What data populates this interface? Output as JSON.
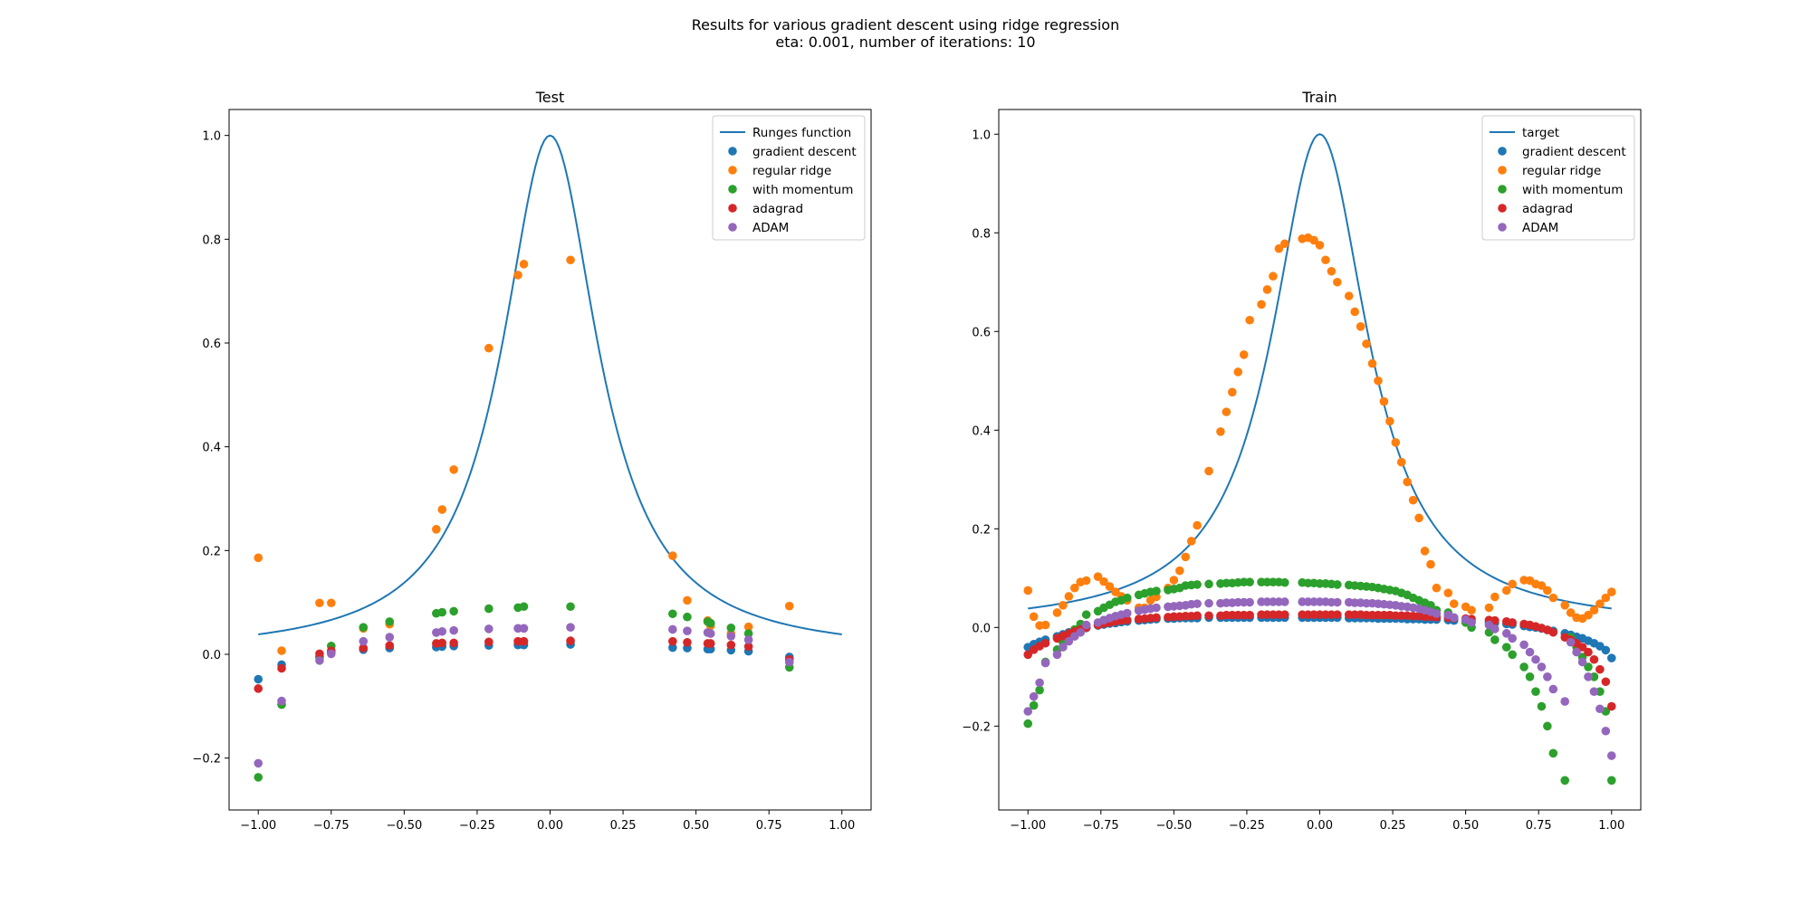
{
  "figure": {
    "suptitle_line1": "Results for various gradient descent using ridge regression",
    "suptitle_line2": "eta: 0.001, number of iterations: 10"
  },
  "colors": {
    "line": "#1f77b4",
    "gradient_descent": "#1f77b4",
    "regular_ridge": "#ff7f0e",
    "with_momentum": "#2ca02c",
    "adagrad": "#d62728",
    "adam": "#9467bd"
  },
  "chart_data": [
    {
      "type": "scatter",
      "title": "Test",
      "xlim": [
        -1.1,
        1.1
      ],
      "ylim": [
        -0.3,
        1.05
      ],
      "xticks": [
        -1.0,
        -0.75,
        -0.5,
        -0.25,
        0.0,
        0.25,
        0.5,
        0.75,
        1.0
      ],
      "xtick_labels": [
        "−1.00",
        "−0.75",
        "−0.50",
        "−0.25",
        "0.00",
        "0.25",
        "0.50",
        "0.75",
        "1.00"
      ],
      "yticks": [
        -0.2,
        0.0,
        0.2,
        0.4,
        0.6,
        0.8,
        1.0
      ],
      "ytick_labels": [
        "−0.2",
        "0.0",
        "0.2",
        "0.4",
        "0.6",
        "0.8",
        "1.0"
      ],
      "legend_position": "top-right",
      "line": {
        "name": "Runges function",
        "function": "1/(1+25x^2)",
        "x_range": [
          -1,
          1
        ]
      },
      "x": [
        -1.0,
        -0.92,
        -0.79,
        -0.75,
        -0.64,
        -0.55,
        -0.39,
        -0.37,
        -0.33,
        -0.21,
        -0.11,
        -0.09,
        0.07,
        0.42,
        0.47,
        0.54,
        0.55,
        0.62,
        0.68,
        0.82
      ],
      "series": [
        {
          "name": "gradient descent",
          "values": [
            -0.048,
            -0.02,
            -0.005,
            0.003,
            0.009,
            0.012,
            0.014,
            0.015,
            0.016,
            0.017,
            0.018,
            0.018,
            0.019,
            0.013,
            0.012,
            0.01,
            0.01,
            0.008,
            0.006,
            -0.005
          ]
        },
        {
          "name": "regular ridge",
          "values": [
            0.186,
            0.007,
            0.099,
            0.099,
            0.05,
            0.058,
            0.241,
            0.279,
            0.356,
            0.59,
            0.731,
            0.752,
            0.76,
            0.19,
            0.104,
            0.065,
            0.055,
            0.04,
            0.053,
            0.093
          ]
        },
        {
          "name": "with momentum",
          "values": [
            -0.237,
            -0.097,
            -0.005,
            0.016,
            0.052,
            0.063,
            0.079,
            0.081,
            0.083,
            0.088,
            0.09,
            0.092,
            0.092,
            0.078,
            0.072,
            0.063,
            0.06,
            0.051,
            0.04,
            -0.025
          ]
        },
        {
          "name": "adagrad",
          "values": [
            -0.066,
            -0.027,
            0.001,
            0.007,
            0.012,
            0.017,
            0.021,
            0.022,
            0.022,
            0.024,
            0.025,
            0.025,
            0.026,
            0.025,
            0.023,
            0.021,
            0.021,
            0.018,
            0.015,
            -0.01
          ]
        },
        {
          "name": "ADAM",
          "values": [
            -0.21,
            -0.09,
            -0.012,
            0.001,
            0.025,
            0.033,
            0.042,
            0.044,
            0.046,
            0.049,
            0.05,
            0.05,
            0.052,
            0.048,
            0.045,
            0.042,
            0.04,
            0.035,
            0.028,
            -0.015
          ]
        }
      ]
    },
    {
      "type": "scatter",
      "title": "Train",
      "xlim": [
        -1.1,
        1.1
      ],
      "ylim": [
        -0.37,
        1.05
      ],
      "xticks": [
        -1.0,
        -0.75,
        -0.5,
        -0.25,
        0.0,
        0.25,
        0.5,
        0.75,
        1.0
      ],
      "xtick_labels": [
        "−1.00",
        "−0.75",
        "−0.50",
        "−0.25",
        "0.00",
        "0.25",
        "0.50",
        "0.75",
        "1.00"
      ],
      "yticks": [
        -0.2,
        0.0,
        0.2,
        0.4,
        0.6,
        0.8,
        1.0
      ],
      "ytick_labels": [
        "−0.2",
        "0.0",
        "0.2",
        "0.4",
        "0.6",
        "0.8",
        "1.0"
      ],
      "legend_position": "top-right",
      "line": {
        "name": "target",
        "function": "1/(1+25x^2)",
        "x_range": [
          -1,
          1
        ]
      },
      "x": [
        -1.0,
        -0.98,
        -0.96,
        -0.94,
        -0.9,
        -0.88,
        -0.86,
        -0.84,
        -0.82,
        -0.8,
        -0.76,
        -0.74,
        -0.72,
        -0.7,
        -0.68,
        -0.66,
        -0.62,
        -0.6,
        -0.58,
        -0.56,
        -0.52,
        -0.5,
        -0.48,
        -0.46,
        -0.44,
        -0.42,
        -0.38,
        -0.34,
        -0.32,
        -0.3,
        -0.28,
        -0.26,
        -0.24,
        -0.2,
        -0.18,
        -0.16,
        -0.14,
        -0.12,
        -0.06,
        -0.04,
        -0.02,
        0.0,
        0.02,
        0.04,
        0.06,
        0.1,
        0.12,
        0.14,
        0.16,
        0.18,
        0.2,
        0.22,
        0.24,
        0.26,
        0.28,
        0.3,
        0.32,
        0.34,
        0.36,
        0.38,
        0.4,
        0.44,
        0.46,
        0.5,
        0.52,
        0.58,
        0.6,
        0.64,
        0.66,
        0.7,
        0.72,
        0.74,
        0.76,
        0.78,
        0.8,
        0.84,
        0.86,
        0.88,
        0.9,
        0.92,
        0.94,
        0.96,
        0.98,
        1.0
      ],
      "series": [
        {
          "name": "gradient descent",
          "values": [
            -0.04,
            -0.034,
            -0.029,
            -0.025,
            -0.018,
            -0.014,
            -0.01,
            -0.007,
            -0.004,
            -0.001,
            0.004,
            0.006,
            0.008,
            0.009,
            0.011,
            0.012,
            0.014,
            0.015,
            0.016,
            0.017,
            0.018,
            0.018,
            0.019,
            0.019,
            0.019,
            0.019,
            0.02,
            0.02,
            0.02,
            0.02,
            0.02,
            0.02,
            0.02,
            0.02,
            0.02,
            0.02,
            0.02,
            0.02,
            0.02,
            0.02,
            0.02,
            0.02,
            0.02,
            0.02,
            0.02,
            0.019,
            0.019,
            0.019,
            0.019,
            0.019,
            0.018,
            0.018,
            0.018,
            0.018,
            0.018,
            0.017,
            0.017,
            0.017,
            0.016,
            0.016,
            0.016,
            0.015,
            0.014,
            0.013,
            0.012,
            0.01,
            0.009,
            0.007,
            0.006,
            0.003,
            0.001,
            0.0,
            -0.002,
            -0.005,
            -0.007,
            -0.012,
            -0.015,
            -0.019,
            -0.022,
            -0.027,
            -0.032,
            -0.038,
            -0.046,
            -0.062
          ]
        },
        {
          "name": "regular ridge",
          "values": [
            0.075,
            0.022,
            0.004,
            0.005,
            0.03,
            0.045,
            0.063,
            0.08,
            0.092,
            0.095,
            0.103,
            0.093,
            0.083,
            0.072,
            0.063,
            0.055,
            0.04,
            0.04,
            0.055,
            0.062,
            0.08,
            0.096,
            0.115,
            0.143,
            0.175,
            0.207,
            0.317,
            0.397,
            0.437,
            0.477,
            0.518,
            0.553,
            0.623,
            0.655,
            0.685,
            0.712,
            0.768,
            0.778,
            0.788,
            0.79,
            0.785,
            0.775,
            0.745,
            0.722,
            0.7,
            0.672,
            0.64,
            0.61,
            0.575,
            0.535,
            0.5,
            0.458,
            0.418,
            0.375,
            0.335,
            0.295,
            0.258,
            0.222,
            0.155,
            0.128,
            0.08,
            0.07,
            0.048,
            0.042,
            0.035,
            0.04,
            0.062,
            0.075,
            0.088,
            0.096,
            0.095,
            0.088,
            0.085,
            0.075,
            0.06,
            0.045,
            0.03,
            0.02,
            0.018,
            0.025,
            0.035,
            0.048,
            0.06,
            0.072
          ]
        },
        {
          "name": "with momentum",
          "values": [
            -0.195,
            -0.158,
            -0.127,
            -0.07,
            -0.045,
            -0.03,
            -0.016,
            -0.004,
            0.007,
            0.026,
            0.033,
            0.04,
            0.046,
            0.052,
            0.055,
            0.06,
            0.066,
            0.069,
            0.072,
            0.074,
            0.076,
            0.078,
            0.08,
            0.085,
            0.086,
            0.087,
            0.088,
            0.089,
            0.09,
            0.09,
            0.091,
            0.092,
            0.092,
            0.092,
            0.092,
            0.092,
            0.092,
            0.091,
            0.091,
            0.09,
            0.09,
            0.089,
            0.089,
            0.088,
            0.087,
            0.086,
            0.085,
            0.084,
            0.083,
            0.082,
            0.08,
            0.078,
            0.076,
            0.074,
            0.07,
            0.066,
            0.06,
            0.055,
            0.05,
            0.045,
            0.035,
            0.03,
            0.02,
            0.01,
            0.0,
            -0.01,
            -0.025,
            -0.04,
            -0.055,
            -0.08,
            -0.1,
            -0.13,
            -0.16,
            -0.2,
            -0.255,
            -0.31,
            -0.02,
            -0.04,
            -0.06,
            -0.08,
            -0.1,
            -0.13,
            -0.17,
            -0.31
          ]
        },
        {
          "name": "adagrad",
          "values": [
            -0.055,
            -0.045,
            -0.038,
            -0.032,
            -0.022,
            -0.017,
            -0.012,
            -0.008,
            -0.004,
            0.0,
            0.005,
            0.008,
            0.01,
            0.012,
            0.014,
            0.015,
            0.017,
            0.018,
            0.019,
            0.02,
            0.021,
            0.022,
            0.022,
            0.023,
            0.023,
            0.024,
            0.024,
            0.024,
            0.025,
            0.025,
            0.025,
            0.025,
            0.025,
            0.026,
            0.026,
            0.026,
            0.026,
            0.026,
            0.026,
            0.026,
            0.026,
            0.026,
            0.026,
            0.026,
            0.026,
            0.026,
            0.026,
            0.026,
            0.025,
            0.025,
            0.025,
            0.025,
            0.025,
            0.024,
            0.024,
            0.024,
            0.023,
            0.023,
            0.022,
            0.022,
            0.021,
            0.02,
            0.019,
            0.018,
            0.017,
            0.015,
            0.014,
            0.012,
            0.01,
            0.007,
            0.005,
            0.002,
            -0.001,
            -0.005,
            -0.01,
            -0.02,
            -0.025,
            -0.032,
            -0.04,
            -0.05,
            -0.065,
            -0.085,
            -0.11,
            -0.16
          ]
        },
        {
          "name": "ADAM",
          "values": [
            -0.17,
            -0.14,
            -0.112,
            -0.072,
            -0.055,
            -0.04,
            -0.028,
            -0.018,
            -0.01,
            0.005,
            0.01,
            0.015,
            0.019,
            0.023,
            0.026,
            0.029,
            0.034,
            0.036,
            0.038,
            0.04,
            0.042,
            0.043,
            0.044,
            0.045,
            0.047,
            0.048,
            0.049,
            0.049,
            0.05,
            0.05,
            0.051,
            0.051,
            0.051,
            0.052,
            0.052,
            0.052,
            0.052,
            0.052,
            0.052,
            0.052,
            0.052,
            0.052,
            0.052,
            0.051,
            0.051,
            0.051,
            0.05,
            0.05,
            0.049,
            0.049,
            0.048,
            0.047,
            0.046,
            0.045,
            0.043,
            0.042,
            0.04,
            0.038,
            0.035,
            0.032,
            0.028,
            0.025,
            0.02,
            0.016,
            0.01,
            0.005,
            -0.003,
            -0.012,
            -0.022,
            -0.035,
            -0.05,
            -0.065,
            -0.08,
            -0.1,
            -0.125,
            -0.15,
            -0.03,
            -0.05,
            -0.07,
            -0.1,
            -0.13,
            -0.165,
            -0.21,
            -0.26
          ]
        }
      ]
    }
  ]
}
